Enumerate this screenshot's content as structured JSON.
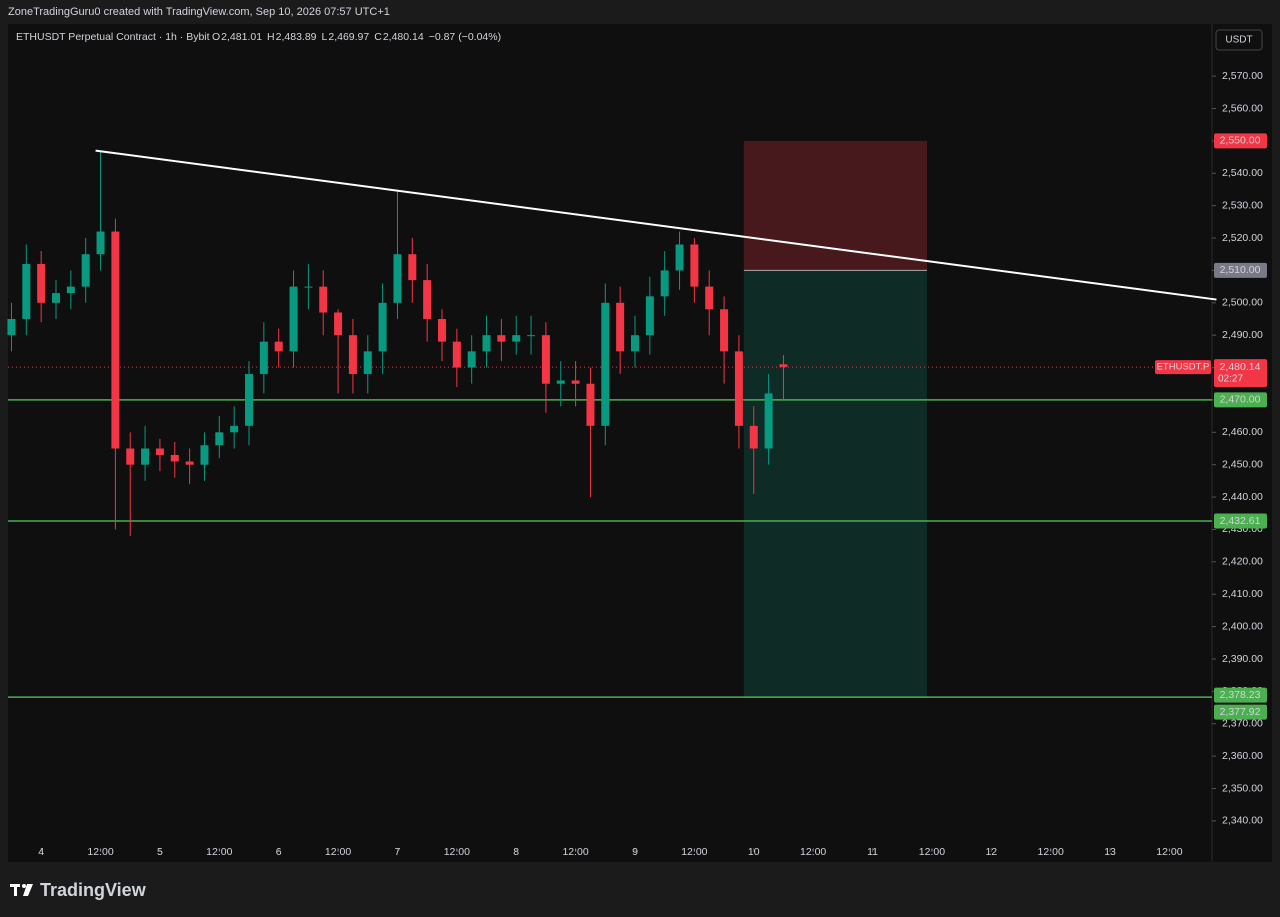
{
  "chart_data": {
    "type": "candlestick",
    "credit": "ZoneTradingGuru0 created with TradingView.com, Sep 10, 2026 07:57 UTC+1",
    "title": "ETHUSDT Perpetual Contract · 1h · Bybit",
    "ohlc_legend": [
      {
        "key": "O",
        "text": "2,481.01"
      },
      {
        "key": "H",
        "text": "2,483.89"
      },
      {
        "key": "L",
        "text": "2,469.97"
      },
      {
        "key": "C",
        "text": "2,480.14"
      }
    ],
    "change": "−0.87 (−0.04%)",
    "currency": "USDT",
    "brand": "TradingView",
    "up_color": "#089981",
    "down_color": "#f23645",
    "x": [
      -6,
      -3,
      0,
      3,
      6,
      9,
      12,
      15,
      18,
      21,
      24,
      27,
      30,
      33,
      36,
      39,
      42,
      45,
      48,
      51,
      54,
      57,
      60,
      63,
      66,
      69,
      72,
      75,
      78,
      81,
      84,
      87,
      90,
      93,
      96,
      99,
      102,
      105,
      108,
      111,
      114,
      117,
      120,
      123,
      126,
      129,
      132,
      135,
      138,
      141,
      144,
      147,
      150
    ],
    "open": [
      2490,
      2495,
      2512,
      2500,
      2503,
      2505,
      2515,
      2522,
      2455,
      2450,
      2455,
      2453,
      2451,
      2450,
      2456,
      2460,
      2462,
      2478,
      2488,
      2485,
      2505,
      2505,
      2497,
      2490,
      2478,
      2485,
      2500,
      2515,
      2507,
      2495,
      2488,
      2480,
      2485,
      2490,
      2488,
      2490,
      2490,
      2475,
      2476,
      2475,
      2462,
      2500,
      2485,
      2490,
      2502,
      2510,
      2518,
      2505,
      2498,
      2485,
      2462,
      2455,
      2481.01
    ],
    "high": [
      2500,
      2518,
      2516,
      2507,
      2510,
      2520,
      2547,
      2526,
      2460,
      2462,
      2458,
      2457,
      2455,
      2460,
      2465,
      2468,
      2482,
      2494,
      2492,
      2510,
      2512,
      2510,
      2498,
      2495,
      2490,
      2506,
      2535,
      2520,
      2512,
      2498,
      2492,
      2490,
      2496,
      2495,
      2496,
      2496,
      2494,
      2482,
      2482,
      2480,
      2506,
      2505,
      2496,
      2508,
      2516,
      2522,
      2520,
      2510,
      2502,
      2490,
      2468,
      2478,
      2483.89
    ],
    "low": [
      2485,
      2490,
      2494,
      2495,
      2498,
      2500,
      2510,
      2430,
      2428,
      2445,
      2448,
      2446,
      2444,
      2445,
      2452,
      2455,
      2456,
      2472,
      2480,
      2480,
      2498,
      2490,
      2472,
      2472,
      2472,
      2478,
      2495,
      2500,
      2488,
      2482,
      2474,
      2475,
      2480,
      2482,
      2484,
      2484,
      2466,
      2468,
      2468,
      2440,
      2456,
      2478,
      2480,
      2484,
      2496,
      2504,
      2500,
      2490,
      2475,
      2455,
      2441,
      2450,
      2469.97
    ],
    "close": [
      2495,
      2512,
      2500,
      2503,
      2505,
      2515,
      2522,
      2455,
      2450,
      2455,
      2453,
      2451,
      2450,
      2456,
      2460,
      2462,
      2478,
      2488,
      2485,
      2505,
      2505,
      2497,
      2490,
      2478,
      2485,
      2500,
      2515,
      2507,
      2495,
      2488,
      2480,
      2485,
      2490,
      2488,
      2490,
      2490,
      2475,
      2476,
      2475,
      2462,
      2500,
      2485,
      2490,
      2502,
      2510,
      2518,
      2505,
      2498,
      2485,
      2462,
      2455,
      2472,
      2480.14
    ],
    "xlim": [
      -6.7,
      236.6
    ],
    "xticks": [
      {
        "value": 0,
        "label": "4"
      },
      {
        "value": 12,
        "label": "12:00"
      },
      {
        "value": 24,
        "label": "5"
      },
      {
        "value": 36,
        "label": "12:00"
      },
      {
        "value": 48,
        "label": "6"
      },
      {
        "value": 60,
        "label": "12:00"
      },
      {
        "value": 72,
        "label": "7"
      },
      {
        "value": 84,
        "label": "12:00"
      },
      {
        "value": 96,
        "label": "8"
      },
      {
        "value": 108,
        "label": "12:00"
      },
      {
        "value": 120,
        "label": "9"
      },
      {
        "value": 132,
        "label": "12:00"
      },
      {
        "value": 144,
        "label": "10"
      },
      {
        "value": 156,
        "label": "12:00"
      },
      {
        "value": 168,
        "label": "11"
      },
      {
        "value": 180,
        "label": "12:00"
      },
      {
        "value": 192,
        "label": "12"
      },
      {
        "value": 204,
        "label": "12:00"
      },
      {
        "value": 216,
        "label": "13"
      },
      {
        "value": 228,
        "label": "12:00"
      }
    ],
    "ylim": [
      2327.3,
      2586.1
    ],
    "yticks": [
      {
        "value": 2340,
        "label": "2,340.00"
      },
      {
        "value": 2350,
        "label": "2,350.00"
      },
      {
        "value": 2360,
        "label": "2,360.00"
      },
      {
        "value": 2370,
        "label": "2,370.00"
      },
      {
        "value": 2380,
        "label": "2,380.00"
      },
      {
        "value": 2390,
        "label": "2,390.00"
      },
      {
        "value": 2400,
        "label": "2,400.00"
      },
      {
        "value": 2410,
        "label": "2,410.00"
      },
      {
        "value": 2420,
        "label": "2,420.00"
      },
      {
        "value": 2430,
        "label": "2,430.00"
      },
      {
        "value": 2440,
        "label": "2,440.00"
      },
      {
        "value": 2450,
        "label": "2,450.00"
      },
      {
        "value": 2460,
        "label": "2,460.00"
      },
      {
        "value": 2470,
        "label": "2,470.00"
      },
      {
        "value": 2480,
        "label": "2,480.00"
      },
      {
        "value": 2490,
        "label": "2,490.00"
      },
      {
        "value": 2500,
        "label": "2,500.00"
      },
      {
        "value": 2510,
        "label": "2,510.00"
      },
      {
        "value": 2520,
        "label": "2,520.00"
      },
      {
        "value": 2530,
        "label": "2,530.00"
      },
      {
        "value": 2540,
        "label": "2,540.00"
      },
      {
        "value": 2550,
        "label": "2,550.00"
      },
      {
        "value": 2560,
        "label": "2,560.00"
      },
      {
        "value": 2570,
        "label": "2,570.00"
      }
    ],
    "trendline": {
      "x": [
        11,
        237.5
      ],
      "y": [
        2547,
        2501
      ],
      "color": "#ffffff"
    },
    "position": {
      "x": [
        142,
        179
      ],
      "stop": 2550,
      "stop_label": "2,550.00",
      "entry": 2510,
      "entry_label": "2,510.00",
      "target": 2377.92,
      "target_label": "2,377.92"
    },
    "levels": [
      {
        "value": 2470,
        "label": "2,470.00",
        "color": "#4caf50"
      },
      {
        "value": 2432.61,
        "label": "2,432.61",
        "color": "#4caf50"
      },
      {
        "value": 2378.23,
        "label": "2,378.23",
        "color": "#4caf50"
      }
    ],
    "last_price": {
      "value": 2480.14,
      "label": "2,480.14",
      "countdown": "02:27",
      "symbol": "ETHUSDT.P"
    }
  }
}
